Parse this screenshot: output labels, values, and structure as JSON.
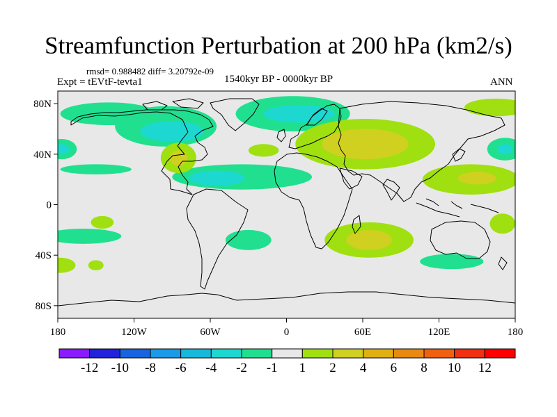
{
  "chart_data": {
    "type": "heatmap",
    "title": "Streamfunction Perturbation at 200 hPa (km2/s)",
    "stats_text": "rmsd= 0.988482 diff= 3.20792e-09",
    "experiment": "Expt = tEVtF-tevta1",
    "period": "1540kyr BP - 0000kyr BP",
    "season": "ANN",
    "projection": "cylindrical equidistant",
    "xlim": [
      -180,
      180
    ],
    "ylim": [
      -90,
      90
    ],
    "x_ticks": [
      {
        "value": -180,
        "label": "180"
      },
      {
        "value": -120,
        "label": "120W"
      },
      {
        "value": -60,
        "label": "60W"
      },
      {
        "value": 0,
        "label": "0"
      },
      {
        "value": 60,
        "label": "60E"
      },
      {
        "value": 120,
        "label": "120E"
      },
      {
        "value": 180,
        "label": "180"
      }
    ],
    "y_ticks": [
      {
        "value": 80,
        "label": "80N"
      },
      {
        "value": 40,
        "label": "40N"
      },
      {
        "value": 0,
        "label": "0"
      },
      {
        "value": -40,
        "label": "40S"
      },
      {
        "value": -80,
        "label": "80S"
      }
    ],
    "colorbar": {
      "levels": [
        "-12",
        "-10",
        "-8",
        "-6",
        "-4",
        "-2",
        "-1",
        "1",
        "2",
        "4",
        "6",
        "8",
        "10",
        "12"
      ],
      "colors": [
        "#8a1aff",
        "#2222dd",
        "#1864e0",
        "#1a9ae8",
        "#16b8dc",
        "#1cd8d0",
        "#20e090",
        "#e8e8e8",
        "#a0e010",
        "#d0d020",
        "#e0b010",
        "#e88a10",
        "#f06010",
        "#f03010",
        "#ff0000"
      ]
    },
    "anomaly_regions": [
      {
        "lon": -140,
        "lat": 72,
        "rlon": 38,
        "rlat": 9,
        "bin": "-1 to -2"
      },
      {
        "lon": -95,
        "lat": 62,
        "rlon": 40,
        "rlat": 16,
        "bin": "-1 to -2"
      },
      {
        "lon": -90,
        "lat": 58,
        "rlon": 25,
        "rlat": 8,
        "bin": "-2 to -4"
      },
      {
        "lon": 5,
        "lat": 72,
        "rlon": 45,
        "rlat": 14,
        "bin": "-1 to -2"
      },
      {
        "lon": 10,
        "lat": 72,
        "rlon": 28,
        "rlat": 7,
        "bin": "-2 to -4"
      },
      {
        "lon": -177,
        "lat": 44,
        "rlon": 12,
        "rlat": 8,
        "bin": "-1 to -2"
      },
      {
        "lon": -177,
        "lat": 44,
        "rlon": 6,
        "rlat": 4,
        "bin": "-2 to -4"
      },
      {
        "lon": -150,
        "lat": 28,
        "rlon": 28,
        "rlat": 4,
        "bin": "-1 to -2"
      },
      {
        "lon": -35,
        "lat": 22,
        "rlon": 55,
        "rlat": 10,
        "bin": "-1 to -2"
      },
      {
        "lon": -55,
        "lat": 21,
        "rlon": 22,
        "rlat": 6,
        "bin": "-2 to -4"
      },
      {
        "lon": 172,
        "lat": 44,
        "rlon": 14,
        "rlat": 9,
        "bin": "-1 to -2"
      },
      {
        "lon": 172,
        "lat": 44,
        "rlon": 6,
        "rlat": 4,
        "bin": "-2 to -4"
      },
      {
        "lon": 165,
        "lat": 77,
        "rlon": 25,
        "rlat": 7,
        "bin": "1 to 2"
      },
      {
        "lon": -145,
        "lat": -14,
        "rlon": 9,
        "rlat": 5,
        "bin": "1 to 2"
      },
      {
        "lon": -160,
        "lat": -25,
        "rlon": 30,
        "rlat": 6,
        "bin": "-1 to -2"
      },
      {
        "lon": -30,
        "lat": -28,
        "rlon": 18,
        "rlat": 8,
        "bin": "-1 to -2"
      },
      {
        "lon": -178,
        "lat": -48,
        "rlon": 12,
        "rlat": 6,
        "bin": "1 to 2"
      },
      {
        "lon": -150,
        "lat": -48,
        "rlon": 6,
        "rlat": 4,
        "bin": "1 to 2"
      },
      {
        "lon": 130,
        "lat": -45,
        "rlon": 25,
        "rlat": 6,
        "bin": "-1 to -2"
      },
      {
        "lon": 170,
        "lat": -15,
        "rlon": 10,
        "rlat": 8,
        "bin": "1 to 2"
      },
      {
        "lon": 62,
        "lat": 48,
        "rlon": 55,
        "rlat": 20,
        "bin": "1 to 2"
      },
      {
        "lon": 62,
        "lat": 48,
        "rlon": 34,
        "rlat": 12,
        "bin": "2 to 4"
      },
      {
        "lon": -85,
        "lat": 37,
        "rlon": 14,
        "rlat": 12,
        "bin": "1 to 2"
      },
      {
        "lon": -85,
        "lat": 37,
        "rlon": 7,
        "rlat": 6,
        "bin": "2 to 4"
      },
      {
        "lon": -18,
        "lat": 43,
        "rlon": 12,
        "rlat": 5,
        "bin": "1 to 2"
      },
      {
        "lon": 145,
        "lat": 20,
        "rlon": 38,
        "rlat": 12,
        "bin": "1 to 2"
      },
      {
        "lon": 150,
        "lat": 21,
        "rlon": 15,
        "rlat": 5,
        "bin": "2 to 4"
      },
      {
        "lon": 65,
        "lat": -28,
        "rlon": 35,
        "rlat": 14,
        "bin": "1 to 2"
      },
      {
        "lon": 65,
        "lat": -28,
        "rlon": 18,
        "rlat": 8,
        "bin": "2 to 4"
      }
    ]
  }
}
